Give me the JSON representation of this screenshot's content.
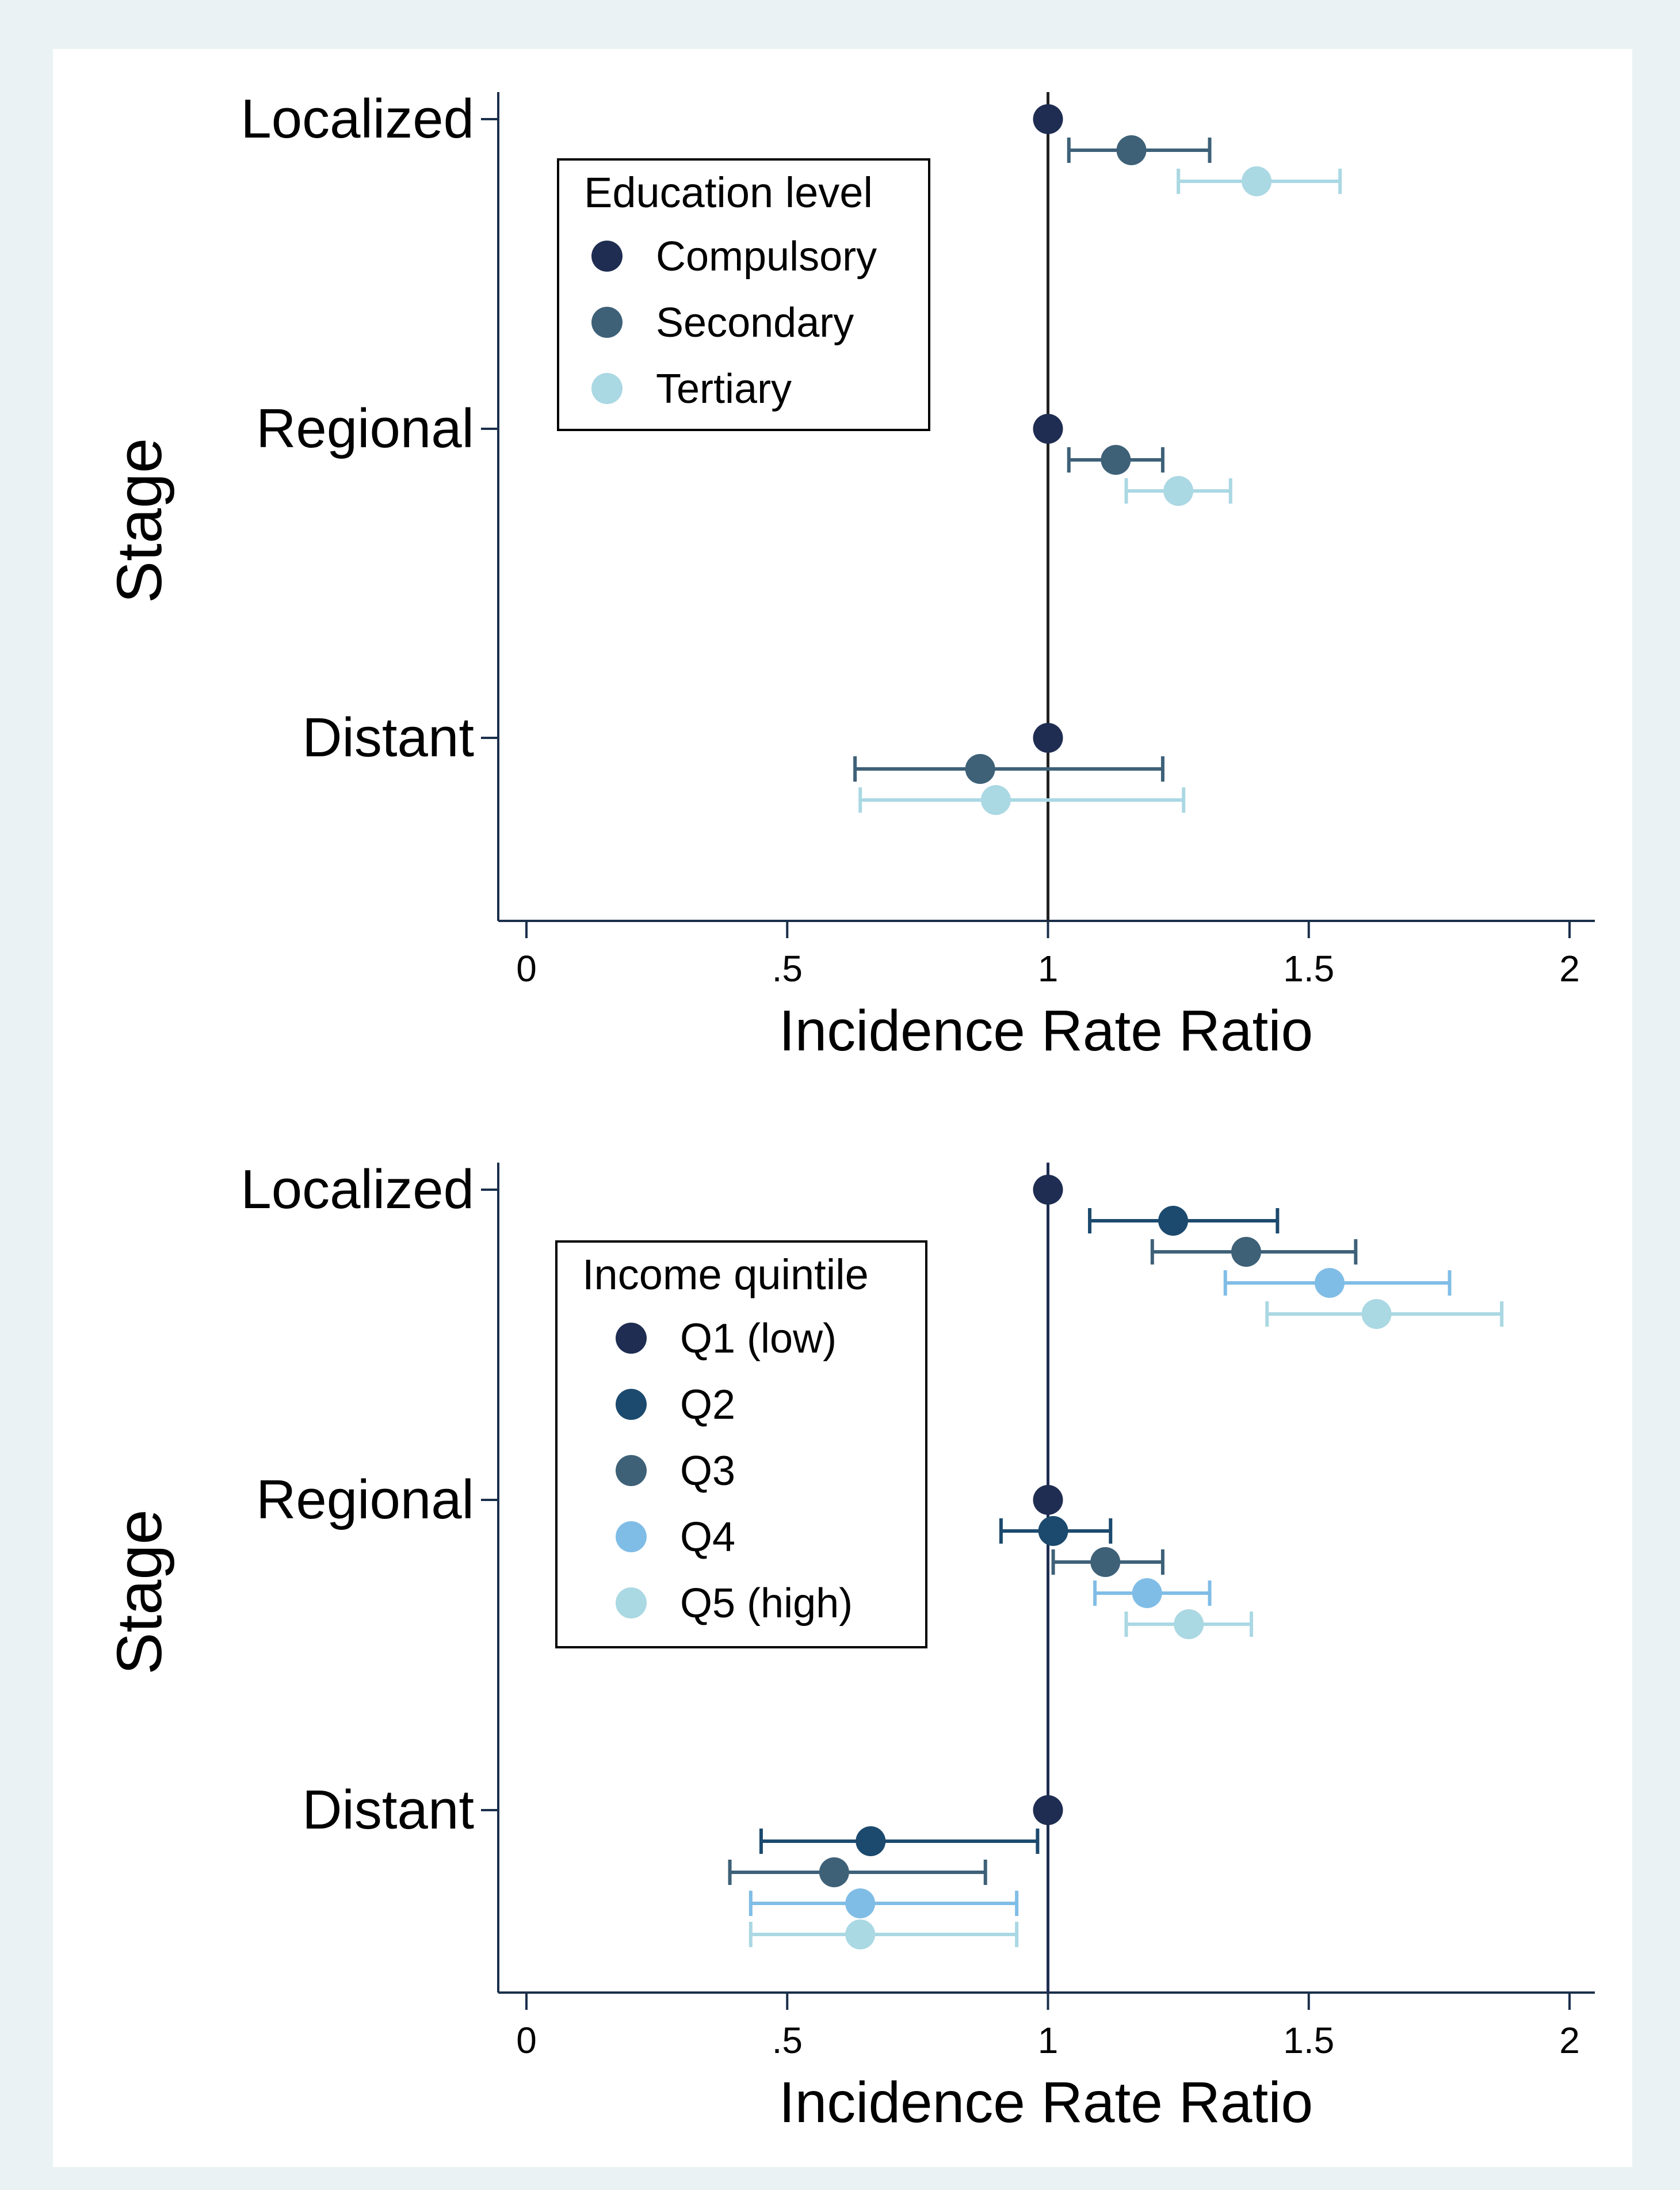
{
  "chart_data": [
    {
      "type": "forest",
      "xlabel": "Incidence Rate Ratio",
      "ylabel": "Stage",
      "xlim": [
        0,
        2
      ],
      "xticks": [
        0,
        0.5,
        1,
        1.5,
        2
      ],
      "xtick_labels": [
        "0",
        ".5",
        "1",
        "1.5",
        "2"
      ],
      "categories": [
        "Localized",
        "Regional",
        "Distant"
      ],
      "reference_line": 1,
      "grid": false,
      "legend": {
        "title": "Education level",
        "position": "top-left"
      },
      "series": [
        {
          "name": "Compulsory",
          "color": "#1f2d52",
          "values": [
            {
              "est": 1.0,
              "lo": null,
              "hi": null
            },
            {
              "est": 1.0,
              "lo": null,
              "hi": null
            },
            {
              "est": 1.0,
              "lo": null,
              "hi": null
            }
          ]
        },
        {
          "name": "Secondary",
          "color": "#3e6178",
          "values": [
            {
              "est": 1.16,
              "lo": 1.04,
              "hi": 1.31
            },
            {
              "est": 1.13,
              "lo": 1.04,
              "hi": 1.22
            },
            {
              "est": 0.87,
              "lo": 0.63,
              "hi": 1.22
            }
          ]
        },
        {
          "name": "Tertiary",
          "color": "#aad8e3",
          "values": [
            {
              "est": 1.4,
              "lo": 1.25,
              "hi": 1.56
            },
            {
              "est": 1.25,
              "lo": 1.15,
              "hi": 1.35
            },
            {
              "est": 0.9,
              "lo": 0.64,
              "hi": 1.26
            }
          ]
        }
      ]
    },
    {
      "type": "forest",
      "xlabel": "Incidence Rate Ratio",
      "ylabel": "Stage",
      "xlim": [
        0,
        2
      ],
      "xticks": [
        0,
        0.5,
        1,
        1.5,
        2
      ],
      "xtick_labels": [
        "0",
        ".5",
        "1",
        "1.5",
        "2"
      ],
      "categories": [
        "Localized",
        "Regional",
        "Distant"
      ],
      "reference_line": 1,
      "grid": false,
      "legend": {
        "title": "Income quintile",
        "position": "left"
      },
      "series": [
        {
          "name": "Q1 (low)",
          "color": "#1f2d52",
          "values": [
            {
              "est": 1.0,
              "lo": null,
              "hi": null
            },
            {
              "est": 1.0,
              "lo": null,
              "hi": null
            },
            {
              "est": 1.0,
              "lo": null,
              "hi": null
            }
          ]
        },
        {
          "name": "Q2",
          "color": "#1c4a6e",
          "values": [
            {
              "est": 1.24,
              "lo": 1.08,
              "hi": 1.44
            },
            {
              "est": 1.01,
              "lo": 0.91,
              "hi": 1.12
            },
            {
              "est": 0.66,
              "lo": 0.45,
              "hi": 0.98
            }
          ]
        },
        {
          "name": "Q3",
          "color": "#3e6178",
          "values": [
            {
              "est": 1.38,
              "lo": 1.2,
              "hi": 1.59
            },
            {
              "est": 1.11,
              "lo": 1.01,
              "hi": 1.22
            },
            {
              "est": 0.59,
              "lo": 0.39,
              "hi": 0.88
            }
          ]
        },
        {
          "name": "Q4",
          "color": "#80bde6",
          "values": [
            {
              "est": 1.54,
              "lo": 1.34,
              "hi": 1.77
            },
            {
              "est": 1.19,
              "lo": 1.09,
              "hi": 1.31
            },
            {
              "est": 0.64,
              "lo": 0.43,
              "hi": 0.94
            }
          ]
        },
        {
          "name": "Q5 (high)",
          "color": "#aad8e3",
          "values": [
            {
              "est": 1.63,
              "lo": 1.42,
              "hi": 1.87
            },
            {
              "est": 1.27,
              "lo": 1.15,
              "hi": 1.39
            },
            {
              "est": 0.64,
              "lo": 0.43,
              "hi": 0.94
            }
          ]
        }
      ]
    }
  ]
}
